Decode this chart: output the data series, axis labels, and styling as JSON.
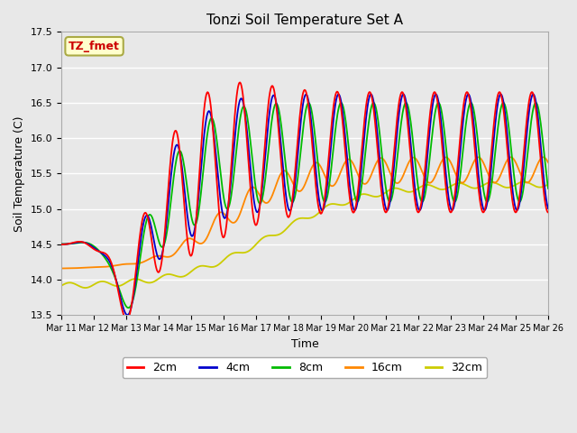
{
  "title": "Tonzi Soil Temperature Set A",
  "xlabel": "Time",
  "ylabel": "Soil Temperature (C)",
  "ylim": [
    13.5,
    17.5
  ],
  "plot_bg_color": "#e8e8e8",
  "fig_bg_color": "#e8e8e8",
  "annotation_text": "TZ_fmet",
  "annotation_color": "#cc0000",
  "annotation_bg": "#ffffcc",
  "annotation_border": "#aaaa44",
  "legend_labels": [
    "2cm",
    "4cm",
    "8cm",
    "16cm",
    "32cm"
  ],
  "legend_colors": [
    "#ff0000",
    "#0000cc",
    "#00bb00",
    "#ff8800",
    "#cccc00"
  ],
  "xtick_labels": [
    "Mar 11",
    "Mar 12",
    "Mar 13",
    "Mar 14",
    "Mar 15",
    "Mar 16",
    "Mar 17",
    "Mar 18",
    "Mar 19",
    "Mar 20",
    "Mar 21",
    "Mar 22",
    "Mar 23",
    "Mar 24",
    "Mar 25",
    "Mar 26"
  ],
  "n_days": 15,
  "pts_per_day": 48
}
